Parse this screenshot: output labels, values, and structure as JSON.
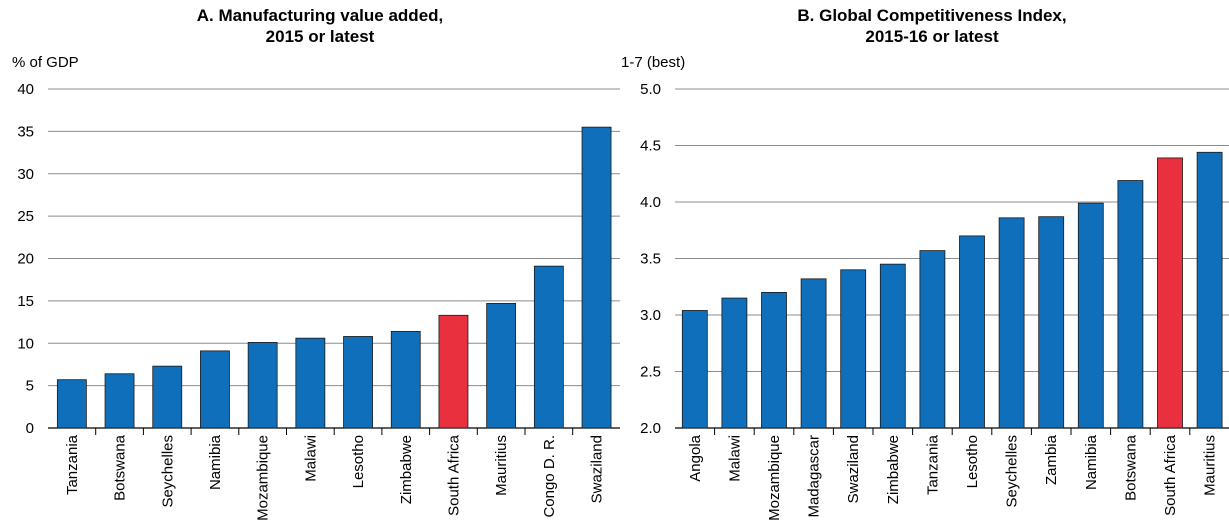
{
  "chart_data": [
    {
      "type": "bar",
      "title": "A. Manufacturing value added,",
      "subtitle": "2015 or latest",
      "ylabel": "% of GDP",
      "xlabel": "",
      "ylim": [
        0,
        40
      ],
      "yticks": [
        "0",
        "5",
        "10",
        "15",
        "20",
        "25",
        "30",
        "35",
        "40"
      ],
      "grid": true,
      "categories": [
        "Tanzania",
        "Botswana",
        "Seychelles",
        "Namibia",
        "Mozambique",
        "Malawi",
        "Lesotho",
        "Zimbabwe",
        "South Africa",
        "Mauritius",
        "Congo D. R.",
        "Swaziland"
      ],
      "values": [
        5.7,
        6.4,
        7.3,
        9.1,
        10.1,
        10.6,
        10.8,
        11.4,
        13.3,
        14.7,
        19.1,
        35.5
      ],
      "highlight": "South Africa"
    },
    {
      "type": "bar",
      "title": "B. Global Competitiveness Index,",
      "subtitle": "2015-16 or latest",
      "ylabel": "1-7 (best)",
      "xlabel": "",
      "ylim": [
        2.0,
        5.0
      ],
      "yticks": [
        "2.0",
        "2.5",
        "3.0",
        "3.5",
        "4.0",
        "4.5",
        "5.0"
      ],
      "grid": true,
      "categories": [
        "Angola",
        "Malawi",
        "Mozambique",
        "Madagascar",
        "Swaziland",
        "Zimbabwe",
        "Tanzania",
        "Lesotho",
        "Seychelles",
        "Zambia",
        "Namibia",
        "Botswana",
        "South Africa",
        "Mauritius"
      ],
      "values": [
        3.04,
        3.15,
        3.2,
        3.32,
        3.4,
        3.45,
        3.57,
        3.7,
        3.86,
        3.87,
        3.99,
        4.19,
        4.39,
        4.44
      ],
      "highlight": "South Africa"
    }
  ],
  "colors": {
    "bar": "#0f6fba",
    "highlight": "#e8303e",
    "grid": "#8c8c8c",
    "axis": "#000000"
  }
}
